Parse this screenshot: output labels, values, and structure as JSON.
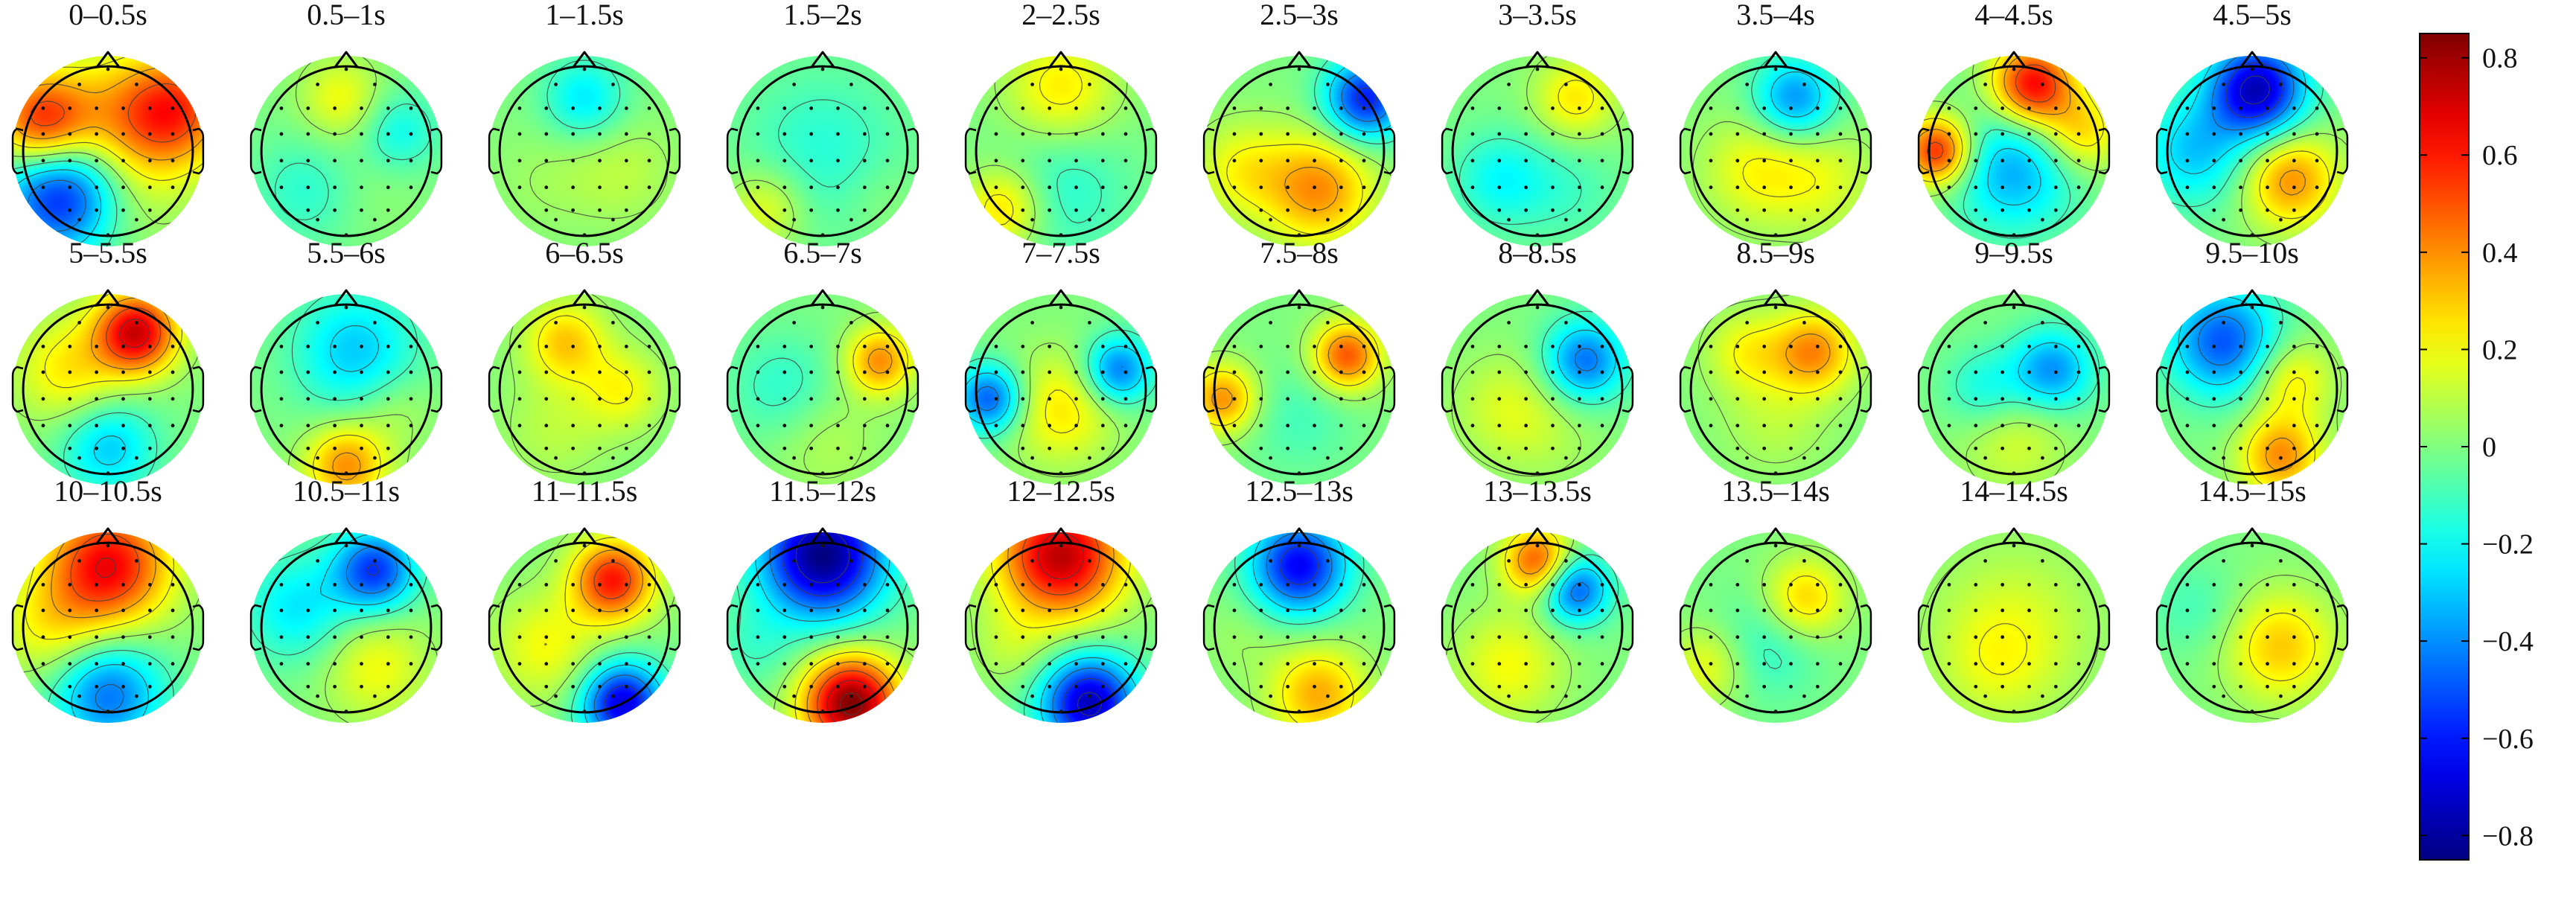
{
  "figure": {
    "panels": [
      {
        "label": "0–0.5s",
        "blobs": [
          {
            "u": 0.1,
            "v": -0.2,
            "val": 0.35,
            "s": 0.55
          },
          {
            "u": 0.72,
            "v": -0.45,
            "val": 0.45,
            "s": 0.4
          },
          {
            "u": -0.7,
            "v": -0.3,
            "val": 0.55,
            "s": 0.35
          },
          {
            "u": -0.45,
            "v": 0.45,
            "val": -0.7,
            "s": 0.45
          },
          {
            "u": 0.0,
            "v": 0.7,
            "val": 0.1,
            "s": 0.4
          }
        ]
      },
      {
        "label": "0.5–1s",
        "blobs": [
          {
            "u": -0.05,
            "v": -0.55,
            "val": 0.2,
            "s": 0.3
          },
          {
            "u": 0.55,
            "v": -0.2,
            "val": -0.2,
            "s": 0.3
          },
          {
            "u": -0.4,
            "v": 0.4,
            "val": -0.15,
            "s": 0.4
          },
          {
            "u": 0.2,
            "v": 0.3,
            "val": 0.05,
            "s": 0.4
          }
        ]
      },
      {
        "label": "1–1.5s",
        "blobs": [
          {
            "u": 0.0,
            "v": -0.55,
            "val": -0.25,
            "s": 0.3
          },
          {
            "u": 0.4,
            "v": 0.2,
            "val": 0.1,
            "s": 0.4
          },
          {
            "u": -0.4,
            "v": 0.3,
            "val": 0.05,
            "s": 0.4
          }
        ]
      },
      {
        "label": "1.5–2s",
        "blobs": [
          {
            "u": 0.0,
            "v": 0.0,
            "val": -0.15,
            "s": 0.6
          },
          {
            "u": 0.6,
            "v": 0.5,
            "val": 0.05,
            "s": 0.3
          },
          {
            "u": -0.6,
            "v": 0.6,
            "val": 0.2,
            "s": 0.3
          }
        ]
      },
      {
        "label": "2–2.5s",
        "blobs": [
          {
            "u": 0.0,
            "v": -0.65,
            "val": 0.25,
            "s": 0.4
          },
          {
            "u": 0.0,
            "v": 0.4,
            "val": -0.15,
            "s": 0.5
          },
          {
            "u": -0.6,
            "v": 0.6,
            "val": 0.3,
            "s": 0.3
          }
        ]
      },
      {
        "label": "2.5–3s",
        "blobs": [
          {
            "u": 0.7,
            "v": -0.55,
            "val": -0.6,
            "s": 0.3
          },
          {
            "u": 0.2,
            "v": 0.4,
            "val": 0.4,
            "s": 0.4
          },
          {
            "u": -0.6,
            "v": 0.2,
            "val": 0.2,
            "s": 0.35
          }
        ]
      },
      {
        "label": "3–3.5s",
        "blobs": [
          {
            "u": 0.4,
            "v": -0.55,
            "val": 0.25,
            "s": 0.3
          },
          {
            "u": -0.4,
            "v": 0.3,
            "val": -0.2,
            "s": 0.35
          },
          {
            "u": 0.3,
            "v": 0.4,
            "val": -0.1,
            "s": 0.4
          }
        ]
      },
      {
        "label": "3.5–4s",
        "blobs": [
          {
            "u": 0.2,
            "v": -0.55,
            "val": -0.4,
            "s": 0.3
          },
          {
            "u": -0.2,
            "v": 0.2,
            "val": 0.2,
            "s": 0.4
          },
          {
            "u": 0.5,
            "v": 0.3,
            "val": 0.15,
            "s": 0.4
          }
        ]
      },
      {
        "label": "4–4.5s",
        "blobs": [
          {
            "u": 0.2,
            "v": -0.7,
            "val": 0.65,
            "s": 0.3
          },
          {
            "u": -0.8,
            "v": 0.0,
            "val": 0.6,
            "s": 0.25
          },
          {
            "u": 0.0,
            "v": 0.2,
            "val": -0.35,
            "s": 0.45
          },
          {
            "u": 0.7,
            "v": -0.2,
            "val": 0.3,
            "s": 0.3
          }
        ]
      },
      {
        "label": "4.5–5s",
        "blobs": [
          {
            "u": 0.05,
            "v": -0.65,
            "val": -0.75,
            "s": 0.35
          },
          {
            "u": -0.6,
            "v": 0.0,
            "val": -0.3,
            "s": 0.4
          },
          {
            "u": 0.4,
            "v": 0.3,
            "val": 0.4,
            "s": 0.35
          }
        ]
      },
      {
        "label": "5–5.5s",
        "blobs": [
          {
            "u": 0.3,
            "v": -0.6,
            "val": 0.7,
            "s": 0.3
          },
          {
            "u": -0.4,
            "v": -0.2,
            "val": 0.25,
            "s": 0.4
          },
          {
            "u": 0.0,
            "v": 0.6,
            "val": -0.3,
            "s": 0.35
          }
        ]
      },
      {
        "label": "5.5–6s",
        "blobs": [
          {
            "u": 0.1,
            "v": -0.4,
            "val": -0.3,
            "s": 0.45
          },
          {
            "u": 0.0,
            "v": 0.8,
            "val": 0.4,
            "s": 0.3
          },
          {
            "u": 0.5,
            "v": 0.2,
            "val": 0.1,
            "s": 0.3
          }
        ]
      },
      {
        "label": "6–6.5s",
        "blobs": [
          {
            "u": -0.2,
            "v": -0.5,
            "val": 0.3,
            "s": 0.3
          },
          {
            "u": 0.4,
            "v": 0.0,
            "val": 0.2,
            "s": 0.3
          },
          {
            "u": -0.3,
            "v": 0.4,
            "val": 0.1,
            "s": 0.4
          }
        ]
      },
      {
        "label": "6.5–7s",
        "blobs": [
          {
            "u": 0.6,
            "v": -0.3,
            "val": 0.4,
            "s": 0.25
          },
          {
            "u": -0.4,
            "v": 0.0,
            "val": -0.15,
            "s": 0.4
          },
          {
            "u": 0.0,
            "v": 0.5,
            "val": 0.1,
            "s": 0.4
          }
        ]
      },
      {
        "label": "7–7.5s",
        "blobs": [
          {
            "u": 0.6,
            "v": -0.2,
            "val": -0.45,
            "s": 0.25
          },
          {
            "u": -0.75,
            "v": 0.1,
            "val": -0.5,
            "s": 0.25
          },
          {
            "u": 0.0,
            "v": 0.2,
            "val": 0.25,
            "s": 0.4
          }
        ]
      },
      {
        "label": "7.5–8s",
        "blobs": [
          {
            "u": 0.5,
            "v": -0.35,
            "val": 0.5,
            "s": 0.25
          },
          {
            "u": -0.8,
            "v": 0.1,
            "val": 0.4,
            "s": 0.25
          },
          {
            "u": 0.0,
            "v": 0.3,
            "val": -0.1,
            "s": 0.4
          }
        ]
      },
      {
        "label": "8–8.5s",
        "blobs": [
          {
            "u": 0.5,
            "v": -0.3,
            "val": -0.45,
            "s": 0.3
          },
          {
            "u": -0.3,
            "v": 0.2,
            "val": 0.15,
            "s": 0.4
          },
          {
            "u": 0.2,
            "v": 0.5,
            "val": 0.05,
            "s": 0.4
          }
        ]
      },
      {
        "label": "8.5–9s",
        "blobs": [
          {
            "u": 0.4,
            "v": -0.4,
            "val": 0.4,
            "s": 0.3
          },
          {
            "u": -0.3,
            "v": -0.4,
            "val": 0.2,
            "s": 0.3
          },
          {
            "u": 0.0,
            "v": 0.3,
            "val": 0.1,
            "s": 0.4
          }
        ]
      },
      {
        "label": "9–9.5s",
        "blobs": [
          {
            "u": 0.4,
            "v": -0.2,
            "val": -0.4,
            "s": 0.3
          },
          {
            "u": -0.3,
            "v": 0.0,
            "val": -0.2,
            "s": 0.3
          },
          {
            "u": 0.0,
            "v": 0.5,
            "val": 0.15,
            "s": 0.4
          }
        ]
      },
      {
        "label": "9.5–10s",
        "blobs": [
          {
            "u": -0.3,
            "v": -0.5,
            "val": -0.5,
            "s": 0.4
          },
          {
            "u": 0.4,
            "v": -0.1,
            "val": 0.25,
            "s": 0.3
          },
          {
            "u": 0.3,
            "v": 0.7,
            "val": 0.4,
            "s": 0.3
          }
        ]
      },
      {
        "label": "10–10.5s",
        "blobs": [
          {
            "u": 0.0,
            "v": -0.65,
            "val": 0.65,
            "s": 0.45
          },
          {
            "u": 0.0,
            "v": 0.7,
            "val": -0.45,
            "s": 0.4
          },
          {
            "u": -0.6,
            "v": 0.0,
            "val": 0.2,
            "s": 0.4
          }
        ]
      },
      {
        "label": "10.5–11s",
        "blobs": [
          {
            "u": 0.3,
            "v": -0.6,
            "val": -0.55,
            "s": 0.3
          },
          {
            "u": -0.5,
            "v": -0.2,
            "val": -0.25,
            "s": 0.4
          },
          {
            "u": 0.3,
            "v": 0.4,
            "val": 0.2,
            "s": 0.4
          }
        ]
      },
      {
        "label": "11–11.5s",
        "blobs": [
          {
            "u": 0.3,
            "v": -0.5,
            "val": 0.6,
            "s": 0.3
          },
          {
            "u": 0.4,
            "v": 0.8,
            "val": -0.7,
            "s": 0.3
          },
          {
            "u": -0.4,
            "v": 0.2,
            "val": 0.2,
            "s": 0.4
          }
        ]
      },
      {
        "label": "11.5–12s",
        "blobs": [
          {
            "u": 0.0,
            "v": -0.75,
            "val": -0.85,
            "s": 0.45
          },
          {
            "u": 0.3,
            "v": 0.8,
            "val": 0.85,
            "s": 0.35
          },
          {
            "u": -0.7,
            "v": 0.2,
            "val": -0.1,
            "s": 0.3
          }
        ]
      },
      {
        "label": "12–12.5s",
        "blobs": [
          {
            "u": 0.0,
            "v": -0.75,
            "val": 0.75,
            "s": 0.45
          },
          {
            "u": 0.3,
            "v": 0.8,
            "val": -0.75,
            "s": 0.35
          },
          {
            "u": -0.5,
            "v": 0.2,
            "val": 0.1,
            "s": 0.3
          }
        ]
      },
      {
        "label": "12.5–13s",
        "blobs": [
          {
            "u": 0.0,
            "v": -0.65,
            "val": -0.65,
            "s": 0.35
          },
          {
            "u": 0.2,
            "v": 0.7,
            "val": 0.35,
            "s": 0.35
          },
          {
            "u": -0.6,
            "v": 0.1,
            "val": 0.05,
            "s": 0.3
          }
        ]
      },
      {
        "label": "13–13.5s",
        "blobs": [
          {
            "u": 0.0,
            "v": -0.7,
            "val": 0.5,
            "s": 0.25
          },
          {
            "u": 0.4,
            "v": -0.4,
            "val": -0.5,
            "s": 0.25
          },
          {
            "u": -0.3,
            "v": 0.4,
            "val": 0.2,
            "s": 0.4
          }
        ]
      },
      {
        "label": "13.5–14s",
        "blobs": [
          {
            "u": 0.3,
            "v": -0.3,
            "val": 0.3,
            "s": 0.3
          },
          {
            "u": -0.7,
            "v": 0.4,
            "val": 0.2,
            "s": 0.3
          },
          {
            "u": -0.1,
            "v": 0.2,
            "val": -0.15,
            "s": 0.4
          }
        ]
      },
      {
        "label": "14–14.5s",
        "blobs": [
          {
            "u": 0.0,
            "v": 0.0,
            "val": 0.15,
            "s": 0.6
          },
          {
            "u": -0.2,
            "v": 0.4,
            "val": 0.1,
            "s": 0.4
          }
        ]
      },
      {
        "label": "14.5–15s",
        "blobs": [
          {
            "u": 0.3,
            "v": 0.2,
            "val": 0.3,
            "s": 0.4
          },
          {
            "u": -0.6,
            "v": -0.2,
            "val": -0.1,
            "s": 0.35
          },
          {
            "u": 0.0,
            "v": -0.6,
            "val": 0.0,
            "s": 0.3
          }
        ]
      }
    ]
  },
  "colorbar": {
    "colormap": "jet",
    "range": [
      -0.85,
      0.85
    ],
    "ticks": [
      {
        "value": 0.8,
        "label": "0.8"
      },
      {
        "value": 0.6,
        "label": "0.6"
      },
      {
        "value": 0.4,
        "label": "0.4"
      },
      {
        "value": 0.2,
        "label": "0.2"
      },
      {
        "value": 0,
        "label": "0"
      },
      {
        "value": -0.2,
        "label": "−0.2"
      },
      {
        "value": -0.4,
        "label": "−0.4"
      },
      {
        "value": -0.6,
        "label": "−0.6"
      },
      {
        "value": -0.8,
        "label": "−0.8"
      }
    ]
  },
  "colors": {
    "outline": "#000000",
    "contour": "#404040",
    "electrode": "#111111"
  }
}
